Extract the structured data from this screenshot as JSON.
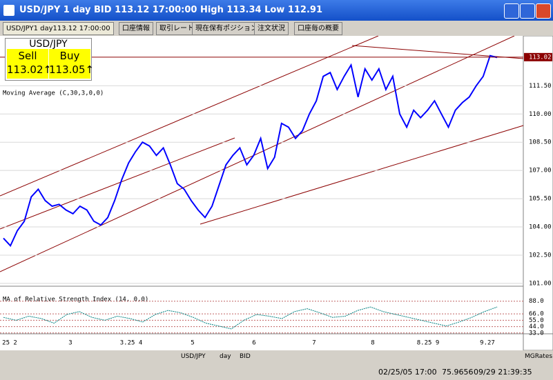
{
  "window_title": "USD/JPY 1 day BID 113.12 17:00:00 High 113.34 Low 112.91",
  "tabs": [
    "USD/JPY1 day113.12 17:00:00",
    "口座情報",
    "取引レート",
    "現在保有ポジション",
    "注文状況",
    "口座毎の概要"
  ],
  "quote": {
    "pair": "USD/JPY",
    "sell_label": "Sell",
    "buy_label": "Buy",
    "sell": 113.02,
    "buy": 113.05
  },
  "indicator_labels": [
    "Moving Average (C,30,3,0,0)",
    "MA of Relative Strength Index (14, 0,0)"
  ],
  "x_labels": [
    "25 2",
    "3",
    "3.25 4",
    "5",
    "6",
    "7",
    "8",
    "8.25 9",
    "9.27"
  ],
  "chart_data": [
    {
      "type": "line",
      "series": [
        {
          "name": "USD/JPY",
          "color": "#0000ff",
          "values": [
            103.4,
            103.0,
            103.8,
            104.3,
            105.6,
            106.0,
            105.4,
            105.1,
            105.2,
            104.9,
            104.7,
            105.1,
            104.9,
            104.3,
            104.1,
            104.5,
            105.4,
            106.5,
            107.4,
            108.0,
            108.5,
            108.3,
            107.8,
            108.2,
            107.3,
            106.3,
            106.0,
            105.4,
            104.9,
            104.5,
            105.1,
            106.2,
            107.3,
            107.8,
            108.2,
            107.3,
            107.8,
            108.7,
            107.1,
            107.7,
            109.5,
            109.3,
            108.7,
            109.1,
            110.0,
            110.7,
            112.0,
            112.2,
            111.3,
            112.0,
            112.6,
            110.9,
            112.4,
            111.8,
            112.4,
            111.3,
            112.0,
            110.0,
            109.3,
            110.2,
            109.8,
            110.2,
            110.7,
            110.0,
            109.3,
            110.2,
            110.6,
            110.9,
            111.5,
            112.0,
            113.1,
            113.0
          ]
        }
      ],
      "last_price": 113.02,
      "ylim": [
        100.96,
        114.15
      ],
      "yticks": [
        {
          "value": 101,
          "label": "101.00"
        },
        {
          "value": 102.5,
          "label": "102.50"
        },
        {
          "value": 104,
          "label": "104.00"
        },
        {
          "value": 105.5,
          "label": "105.50"
        },
        {
          "value": 107,
          "label": "107.00"
        },
        {
          "value": 108.5,
          "label": "108.50"
        },
        {
          "value": 110,
          "label": "110.00"
        },
        {
          "value": 111.5,
          "label": "111.50"
        }
      ],
      "grid": true
    },
    {
      "type": "line",
      "series": [
        {
          "name": "RSI",
          "color": "#008080",
          "values": [
            60,
            55,
            62,
            58,
            50,
            65,
            70,
            60,
            55,
            62,
            58,
            52,
            65,
            72,
            68,
            60,
            50,
            45,
            40,
            55,
            65,
            62,
            58,
            70,
            75,
            68,
            60,
            62,
            72,
            78,
            70,
            65,
            60,
            55,
            50,
            45,
            52,
            60,
            70,
            78
          ]
        }
      ],
      "ylim": [
        22,
        102
      ],
      "yticks": [
        {
          "value": 33,
          "label": "33.0"
        },
        {
          "value": 44,
          "label": "44.0"
        },
        {
          "value": 55,
          "label": "55.0"
        },
        {
          "value": 66,
          "label": "66.0"
        },
        {
          "value": 88,
          "label": "88.0"
        }
      ],
      "grid": true
    }
  ],
  "toolbar": [
    "USD/JPY",
    "day",
    "BID",
    "MGRates"
  ],
  "status": [
    "02/25/05 17:00",
    "75.9656",
    "09/29 21:39:35"
  ]
}
